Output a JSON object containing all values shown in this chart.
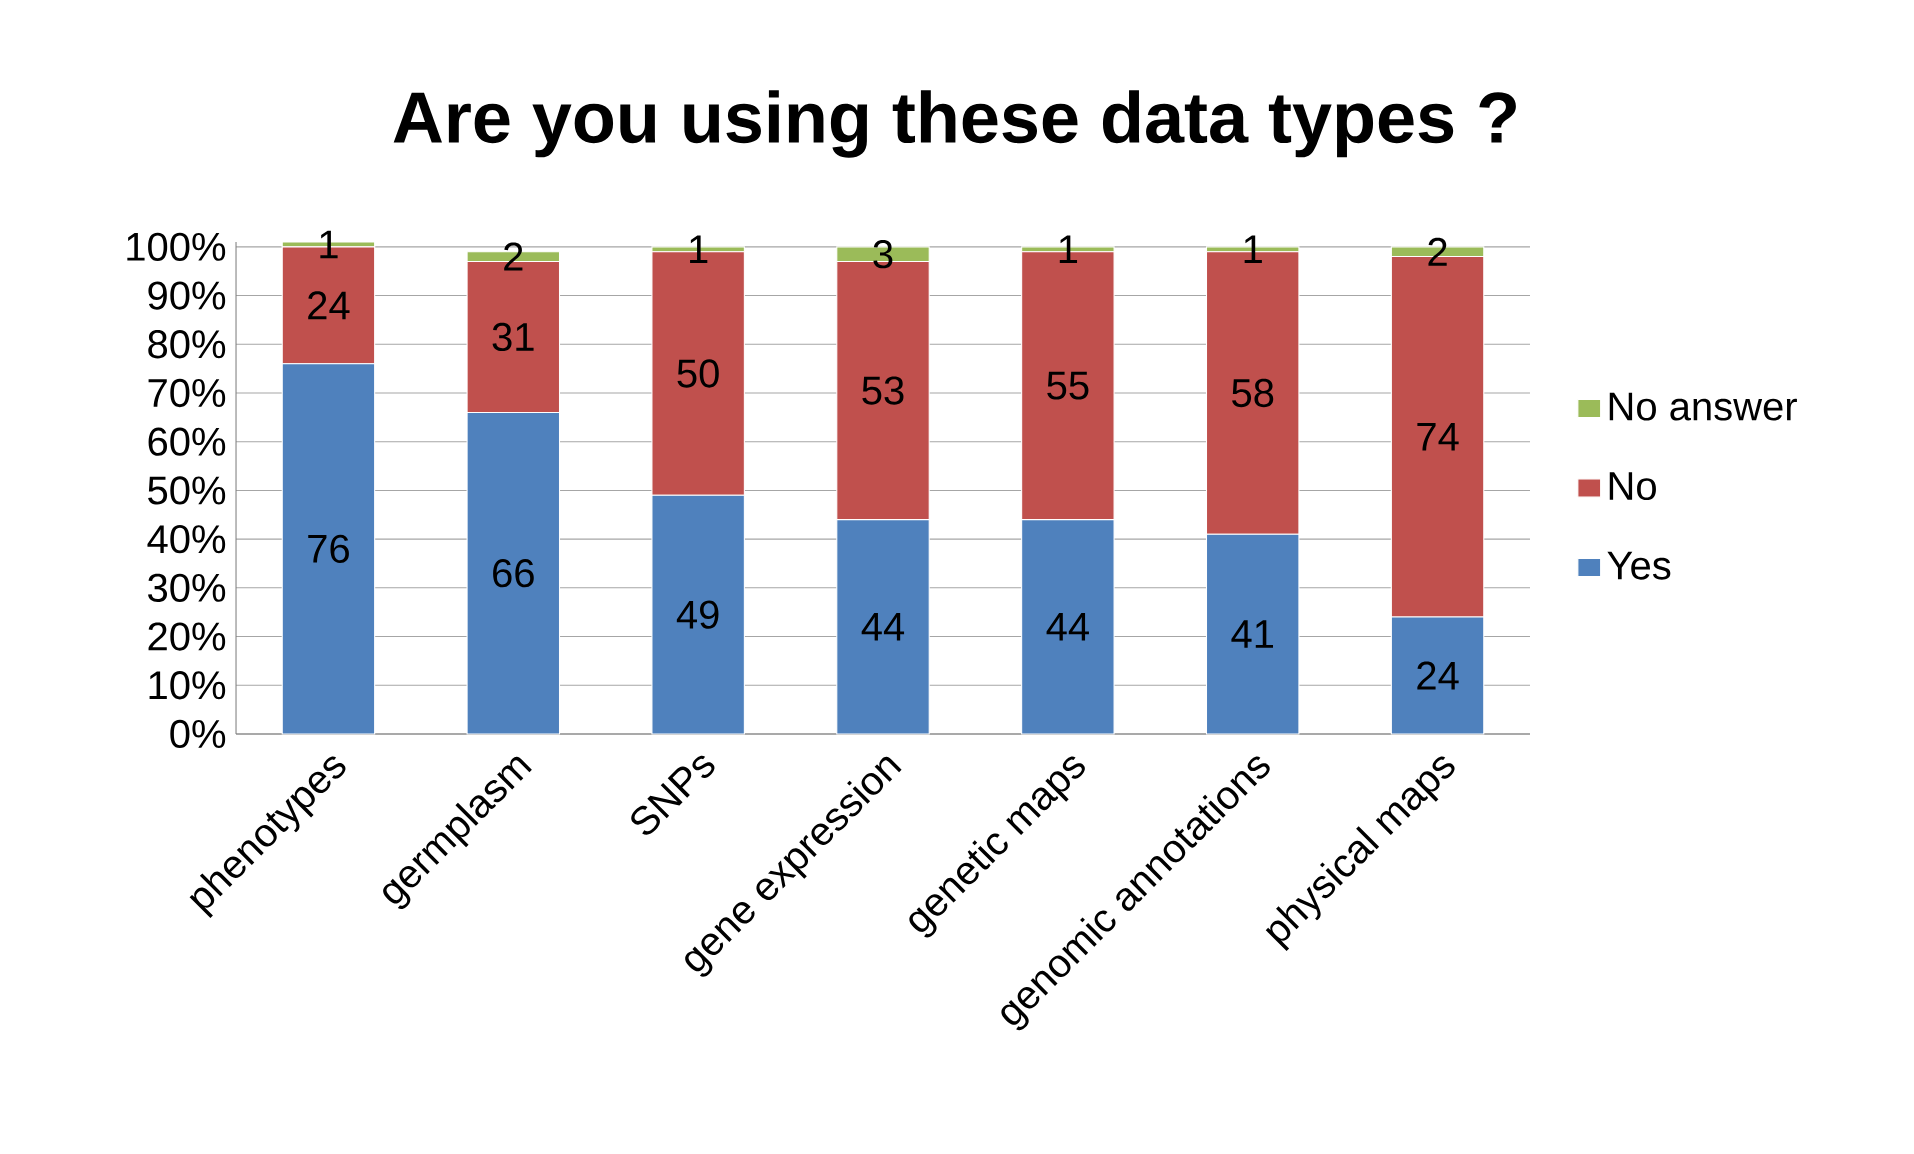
{
  "chart_data": {
    "type": "bar",
    "stacked": true,
    "title": "Are you using these data types ?",
    "categories": [
      "phenotypes",
      "germplasm",
      "SNPs",
      "gene expression",
      "genetic maps",
      "genomic annotations",
      "physical maps"
    ],
    "series": [
      {
        "name": "Yes",
        "color": "#4f81bd",
        "values": [
          76,
          66,
          49,
          44,
          44,
          41,
          24
        ]
      },
      {
        "name": "No",
        "color": "#c0504d",
        "values": [
          24,
          31,
          50,
          53,
          55,
          58,
          74
        ]
      },
      {
        "name": "No answer",
        "color": "#9bbb59",
        "values": [
          1,
          2,
          1,
          3,
          1,
          1,
          2
        ]
      }
    ],
    "ylim": [
      0,
      101
    ],
    "yticks": [
      {
        "value": 0,
        "label": "0%"
      },
      {
        "value": 10,
        "label": "10%"
      },
      {
        "value": 20,
        "label": "20%"
      },
      {
        "value": 30,
        "label": "30%"
      },
      {
        "value": 40,
        "label": "40%"
      },
      {
        "value": 50,
        "label": "50%"
      },
      {
        "value": 60,
        "label": "60%"
      },
      {
        "value": 70,
        "label": "70%"
      },
      {
        "value": 80,
        "label": "80%"
      },
      {
        "value": 90,
        "label": "90%"
      },
      {
        "value": 100,
        "label": "100%"
      }
    ],
    "grid": "y",
    "legend": "right",
    "data_labels": true
  }
}
